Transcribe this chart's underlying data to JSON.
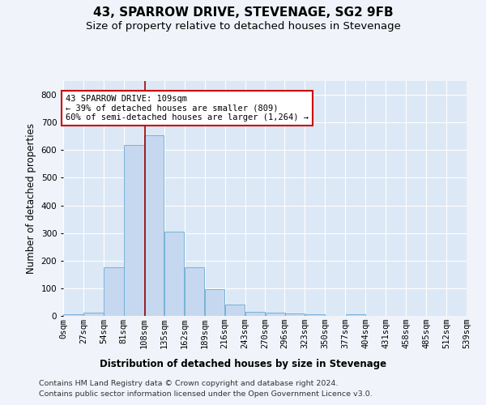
{
  "title": "43, SPARROW DRIVE, STEVENAGE, SG2 9FB",
  "subtitle": "Size of property relative to detached houses in Stevenage",
  "xlabel": "Distribution of detached houses by size in Stevenage",
  "ylabel": "Number of detached properties",
  "footer_line1": "Contains HM Land Registry data © Crown copyright and database right 2024.",
  "footer_line2": "Contains public sector information licensed under the Open Government Licence v3.0.",
  "bin_labels": [
    "0sqm",
    "27sqm",
    "54sqm",
    "81sqm",
    "108sqm",
    "135sqm",
    "162sqm",
    "189sqm",
    "216sqm",
    "243sqm",
    "270sqm",
    "296sqm",
    "323sqm",
    "350sqm",
    "377sqm",
    "404sqm",
    "431sqm",
    "458sqm",
    "485sqm",
    "512sqm",
    "539sqm"
  ],
  "bin_edges": [
    0,
    27,
    54,
    81,
    108,
    135,
    162,
    189,
    216,
    243,
    270,
    296,
    323,
    350,
    377,
    404,
    431,
    458,
    485,
    512,
    539
  ],
  "bar_heights": [
    7,
    13,
    175,
    618,
    655,
    305,
    175,
    97,
    40,
    14,
    11,
    10,
    5,
    0,
    6,
    0,
    0,
    0,
    0,
    0
  ],
  "bar_color": "#c5d8f0",
  "bar_edge_color": "#6aaad4",
  "property_size": 109,
  "vline_color": "#990000",
  "annotation_text": "43 SPARROW DRIVE: 109sqm\n← 39% of detached houses are smaller (809)\n60% of semi-detached houses are larger (1,264) →",
  "annotation_box_color": "#ffffff",
  "annotation_box_edge_color": "#cc0000",
  "ylim": [
    0,
    850
  ],
  "yticks": [
    0,
    100,
    200,
    300,
    400,
    500,
    600,
    700,
    800
  ],
  "background_color": "#f0f4fa",
  "plot_bg_color": "#dce8f5",
  "grid_color": "#ffffff",
  "title_fontsize": 11,
  "subtitle_fontsize": 9.5,
  "axis_label_fontsize": 8.5,
  "tick_fontsize": 7.5,
  "footer_fontsize": 6.8,
  "annotation_fontsize": 7.5
}
